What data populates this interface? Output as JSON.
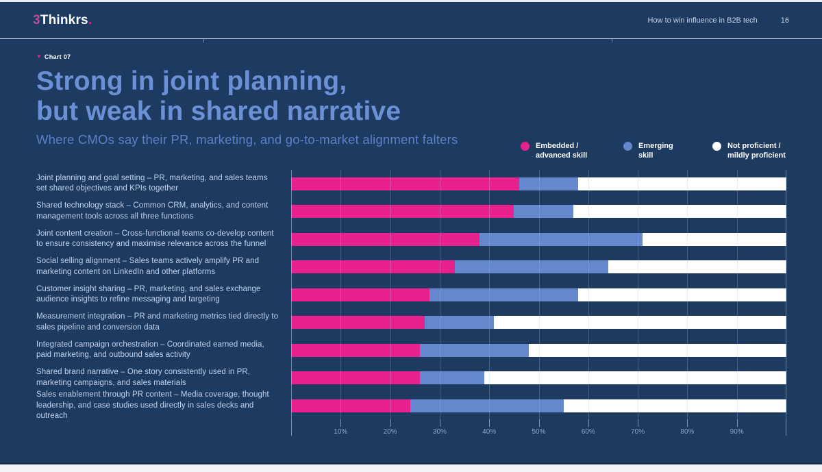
{
  "header": {
    "logo_prefix": "3",
    "logo_name": "Thinkrs",
    "logo_suffix": ".",
    "doc_title": "How to win influence in B2B tech",
    "page_number": "16"
  },
  "chart_tag": {
    "marker": "▼",
    "label": "Chart 07"
  },
  "title_line1": "Strong in joint planning,",
  "title_line2": "but weak in shared narrative",
  "subtitle": "Where CMOs say their PR, marketing, and go-to-market alignment falters",
  "legend": [
    {
      "line1": "Embedded /",
      "line2": "advanced skill",
      "color": "#e9218e"
    },
    {
      "line1": "Emerging",
      "line2": "skill",
      "color": "#6487cd"
    },
    {
      "line1": "Not proficient /",
      "line2": "mildly proficient",
      "color": "#ffffff"
    }
  ],
  "colors": {
    "background": "#1d3a60",
    "accent_pink": "#e9218e",
    "accent_blue": "#6487cd",
    "accent_white": "#ffffff",
    "title_blue": "#6c90d5"
  },
  "chart_data": {
    "type": "bar",
    "orientation": "horizontal",
    "stacked": true,
    "unit": "percent",
    "title": "Strong in joint planning, but weak in shared narrative",
    "subtitle": "Where CMOs say their PR, marketing, and go-to-market alignment falters",
    "xlim": [
      0,
      100
    ],
    "grid": true,
    "legend_position": "top-right",
    "x_tick_labels": [
      "10%",
      "20%",
      "30%",
      "40%",
      "50%",
      "60%",
      "70%",
      "80%",
      "90%"
    ],
    "categories": [
      "Joint planning and goal setting – PR, marketing, and sales teams set shared objectives and KPIs together",
      "Shared technology stack – Common CRM, analytics, and content management tools across all three functions",
      "Joint content creation – Cross-functional teams co-develop content to ensure consistency and maximise relevance across the funnel",
      "Social selling alignment – Sales teams actively amplify PR and marketing content on LinkedIn and other platforms",
      "Customer insight sharing – PR, marketing, and sales exchange audience insights to refine messaging and targeting",
      "Measurement integration – PR and marketing metrics tied directly to sales pipeline and conversion data",
      "Integrated campaign orchestration – Coordinated earned media, paid marketing, and outbound sales activity",
      "Shared brand narrative – One story consistently used in PR, marketing campaigns, and sales materials",
      "Sales enablement through PR content – Media coverage, thought leadership, and case studies used directly in sales decks and outreach"
    ],
    "series": [
      {
        "name": "Embedded / advanced skill",
        "color": "#e9218e",
        "values": [
          46,
          45,
          38,
          33,
          28,
          27,
          26,
          26,
          24
        ]
      },
      {
        "name": "Emerging skill",
        "color": "#6487cd",
        "values": [
          12,
          12,
          33,
          31,
          30,
          14,
          22,
          13,
          31
        ]
      },
      {
        "name": "Not proficient / mildly proficient",
        "color": "#ffffff",
        "values": [
          42,
          43,
          29,
          36,
          42,
          59,
          52,
          61,
          45
        ]
      }
    ]
  }
}
